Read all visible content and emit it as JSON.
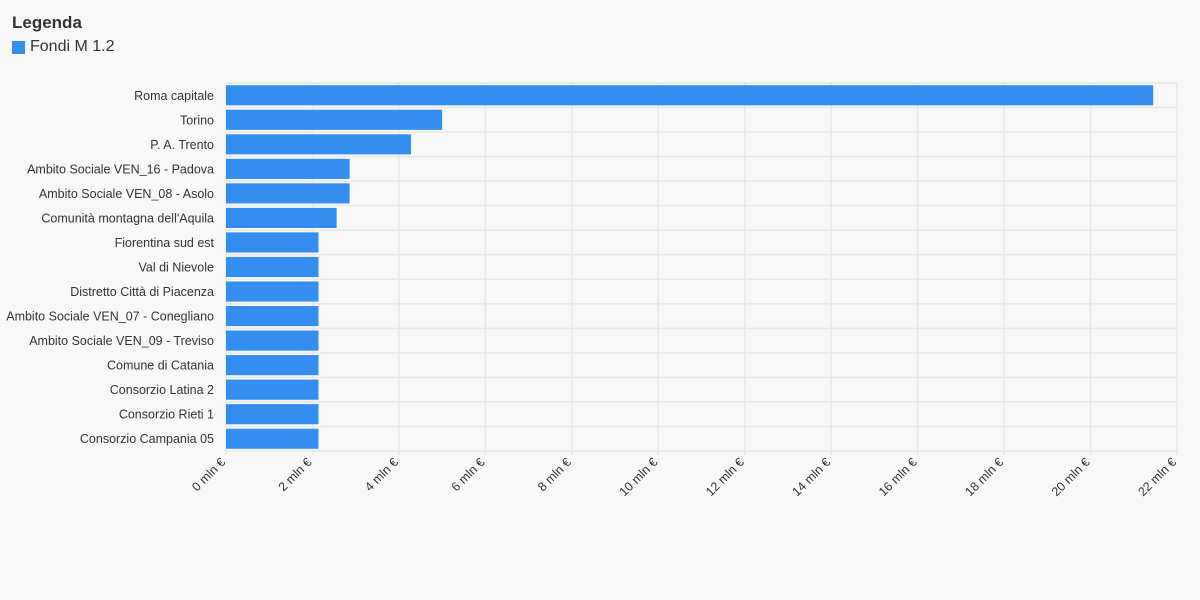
{
  "legend": {
    "title": "Legenda",
    "items": [
      {
        "label": "Fondi M 1.2",
        "color": "#338ef0"
      }
    ]
  },
  "chart_data": {
    "type": "bar",
    "orientation": "horizontal",
    "categories": [
      "Roma capitale",
      "Torino",
      "P. A. Trento",
      "Ambito Sociale VEN_16 - Padova",
      "Ambito Sociale VEN_08 - Asolo",
      "Comunità montagna dell'Aquila",
      "Fiorentina sud est",
      "Val di Nievole",
      "Distretto Città di Piacenza",
      "Ambito Sociale VEN_07 - Conegliano",
      "Ambito Sociale VEN_09 - Treviso",
      "Comune di Catania",
      "Consorzio Latina 2",
      "Consorzio Rieti 1",
      "Consorzio Campania 05"
    ],
    "series": [
      {
        "name": "Fondi M 1.2",
        "color": "#338ef0",
        "values": [
          21.45,
          5.0,
          4.28,
          2.86,
          2.86,
          2.56,
          2.14,
          2.14,
          2.14,
          2.14,
          2.14,
          2.14,
          2.14,
          2.14,
          2.14
        ]
      }
    ],
    "xlim": [
      0,
      22
    ],
    "xticks": [
      0,
      2,
      4,
      6,
      8,
      10,
      12,
      14,
      16,
      18,
      20,
      22
    ],
    "xtick_labels": [
      "0 mln €",
      "2 mln €",
      "4 mln €",
      "6 mln €",
      "8 mln €",
      "10 mln €",
      "12 mln €",
      "14 mln €",
      "16 mln €",
      "18 mln €",
      "20 mln €",
      "22 mln €"
    ],
    "grid": true,
    "legend_position": "top-left"
  }
}
